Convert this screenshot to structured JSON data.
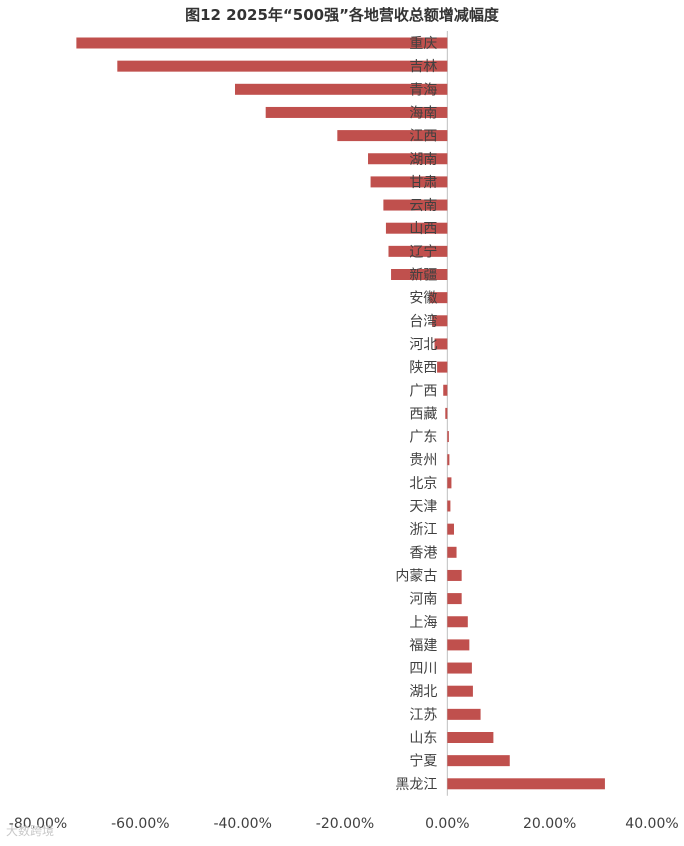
{
  "title": "图12   2025年“500强”各地营收总额增减幅度",
  "watermark": "大数跨境",
  "chart_data": {
    "type": "bar",
    "orientation": "horizontal",
    "title": "图12   2025年“500强”各地营收总额增减幅度",
    "categories": [
      "重庆",
      "吉林",
      "青海",
      "海南",
      "江西",
      "湖南",
      "甘肃",
      "云南",
      "山西",
      "辽宁",
      "新疆",
      "安徽",
      "台湾",
      "河北",
      "陕西",
      "广西",
      "西藏",
      "广东",
      "贵州",
      "北京",
      "天津",
      "浙江",
      "香港",
      "内蒙古",
      "河南",
      "上海",
      "福建",
      "四川",
      "湖北",
      "江苏",
      "山东",
      "宁夏",
      "黑龙江"
    ],
    "values": [
      -72.5,
      -64.5,
      -41.5,
      -35.5,
      -21.5,
      -15.5,
      -15.0,
      -12.5,
      -12.0,
      -11.5,
      -11.0,
      -3.5,
      -3.0,
      -2.5,
      -2.0,
      -0.8,
      -0.4,
      0.3,
      0.4,
      0.8,
      0.6,
      1.3,
      1.8,
      2.8,
      2.8,
      4.0,
      4.3,
      4.8,
      5.0,
      6.5,
      9.0,
      12.2,
      30.8
    ],
    "xlim": [
      -80,
      40
    ],
    "xticks": [
      "-80.00%",
      "-60.00%",
      "-40.00%",
      "-20.00%",
      "0.00%",
      "20.00%",
      "40.00%"
    ],
    "xtick_values": [
      -80,
      -60,
      -40,
      -20,
      0,
      20,
      40
    ],
    "bar_color": "#c0504d",
    "grid": false,
    "legend": "none"
  }
}
